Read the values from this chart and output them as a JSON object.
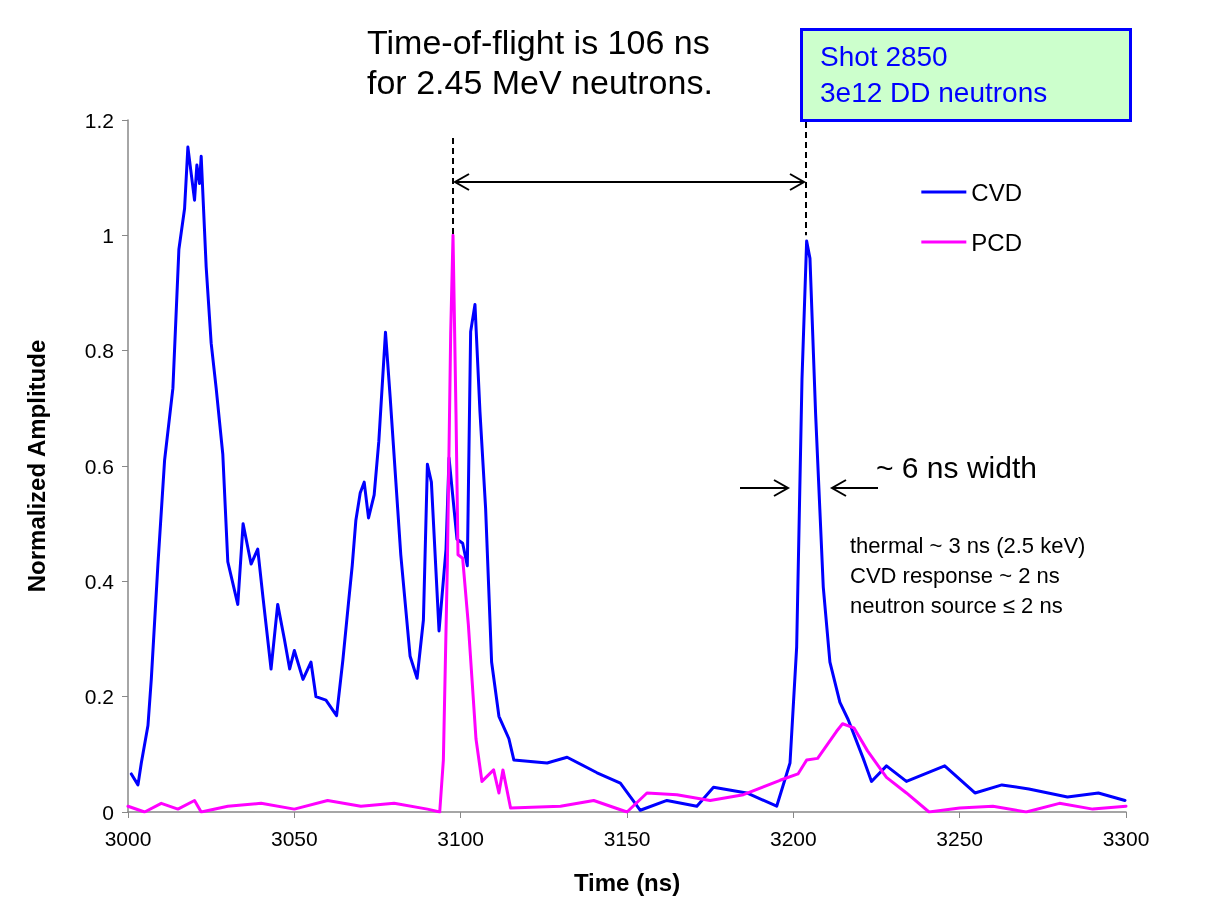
{
  "chart_data": {
    "type": "line",
    "xlabel": "Time (ns)",
    "ylabel": "Normalized Amplitude",
    "xlim": [
      3000,
      3300
    ],
    "xticks": [
      3000,
      3050,
      3100,
      3150,
      3200,
      3250,
      3300
    ],
    "ylim": [
      0,
      1.2
    ],
    "yticks": [
      0,
      0.2,
      0.4,
      0.6,
      0.8,
      1,
      1.2
    ],
    "grid": false,
    "legend": "top right",
    "marker": "none",
    "line_style": "solid",
    "series": [
      {
        "name": "CVD",
        "color": "#0000ff",
        "x": [
          3001,
          3003,
          3004,
          3006,
          3007,
          3009,
          3011,
          3013.5,
          3015.3,
          3017,
          3018,
          3020,
          3020.7,
          3021.5,
          3022,
          3023.5,
          3025,
          3026.5,
          3028.5,
          3030,
          3033,
          3034.6,
          3037,
          3039,
          3040.6,
          3043,
          3045,
          3047,
          3048.6,
          3050,
          3052.6,
          3055,
          3056.5,
          3059.5,
          3062.7,
          3064.6,
          3066.3,
          3067.4,
          3068.5,
          3069.8,
          3071,
          3072.3,
          3074,
          3075.4,
          3077.4,
          3078.8,
          3082,
          3084.8,
          3086.9,
          3088.8,
          3090,
          3091.2,
          3093.5,
          3095.6,
          3096.5,
          3098.9,
          3100.6,
          3102,
          3103,
          3104.3,
          3105.8,
          3107.5,
          3109.3,
          3111.5,
          3114.5,
          3116,
          3126,
          3132,
          3141,
          3148,
          3154,
          3162,
          3171,
          3176,
          3186,
          3195,
          3199,
          3201,
          3202.6,
          3204,
          3205,
          3206.7,
          3209,
          3211,
          3214,
          3216.5,
          3221,
          3223.5,
          3228,
          3234,
          3245.5,
          3254.6,
          3262.7,
          3270.8,
          3282.4,
          3291.7,
          3299.7
        ],
        "values": [
          0.066,
          0.047,
          0.085,
          0.15,
          0.23,
          0.43,
          0.61,
          0.735,
          0.976,
          1.046,
          1.153,
          1.061,
          1.122,
          1.09,
          1.137,
          0.945,
          0.813,
          0.735,
          0.62,
          0.434,
          0.36,
          0.5,
          0.43,
          0.456,
          0.371,
          0.248,
          0.36,
          0.3,
          0.248,
          0.28,
          0.23,
          0.26,
          0.2,
          0.194,
          0.167,
          0.264,
          0.364,
          0.427,
          0.506,
          0.553,
          0.572,
          0.51,
          0.55,
          0.643,
          0.832,
          0.72,
          0.446,
          0.27,
          0.232,
          0.333,
          0.603,
          0.572,
          0.314,
          0.456,
          0.614,
          0.473,
          0.466,
          0.427,
          0.833,
          0.88,
          0.694,
          0.526,
          0.26,
          0.166,
          0.127,
          0.09,
          0.085,
          0.095,
          0.068,
          0.05,
          0.003,
          0.02,
          0.01,
          0.043,
          0.033,
          0.01,
          0.085,
          0.286,
          0.75,
          0.99,
          0.96,
          0.69,
          0.39,
          0.26,
          0.19,
          0.16,
          0.093,
          0.053,
          0.08,
          0.053,
          0.08,
          0.033,
          0.047,
          0.04,
          0.026,
          0.033,
          0.02
        ]
      },
      {
        "name": "PCD",
        "color": "#ff00ff",
        "x": [
          3000,
          3005,
          3010,
          3015,
          3020,
          3022,
          3030,
          3040,
          3050,
          3060,
          3070,
          3080,
          3090,
          3093.7,
          3094.8,
          3096,
          3097,
          3097.7,
          3098.6,
          3099.2,
          3100.6,
          3102.3,
          3104.6,
          3106.4,
          3109.9,
          3111.5,
          3112.7,
          3115,
          3130,
          3140,
          3150,
          3156,
          3165,
          3175,
          3185,
          3196,
          3201.4,
          3204,
          3207.3,
          3213,
          3214.8,
          3218.2,
          3222.3,
          3228,
          3234,
          3240.8,
          3250,
          3260,
          3270,
          3280,
          3290,
          3300
        ],
        "values": [
          0.01,
          0,
          0.015,
          0.005,
          0.02,
          0,
          0.01,
          0.015,
          0.005,
          0.02,
          0.01,
          0.015,
          0.005,
          0,
          0.09,
          0.43,
          0.83,
          1,
          0.69,
          0.446,
          0.44,
          0.326,
          0.127,
          0.053,
          0.073,
          0.033,
          0.073,
          0.007,
          0.01,
          0.02,
          0,
          0.033,
          0.03,
          0.02,
          0.03,
          0.055,
          0.066,
          0.09,
          0.093,
          0.14,
          0.153,
          0.146,
          0.106,
          0.06,
          0.033,
          0,
          0.007,
          0.01,
          0,
          0.015,
          0.005,
          0.01
        ]
      }
    ],
    "annotations": [
      {
        "text": "Time-of-flight is 106 ns\nfor 2.45 MeV neutrons.",
        "x": 3097.7,
        "y": 1
      },
      "~ 6 ns width",
      "Shot 2850\n3e12 DD neutrons",
      "thermal ~ 3 ns (2.5 keV)\nCVD response ~ 2 ns\nneutron source ≤ 2 ns"
    ]
  }
}
